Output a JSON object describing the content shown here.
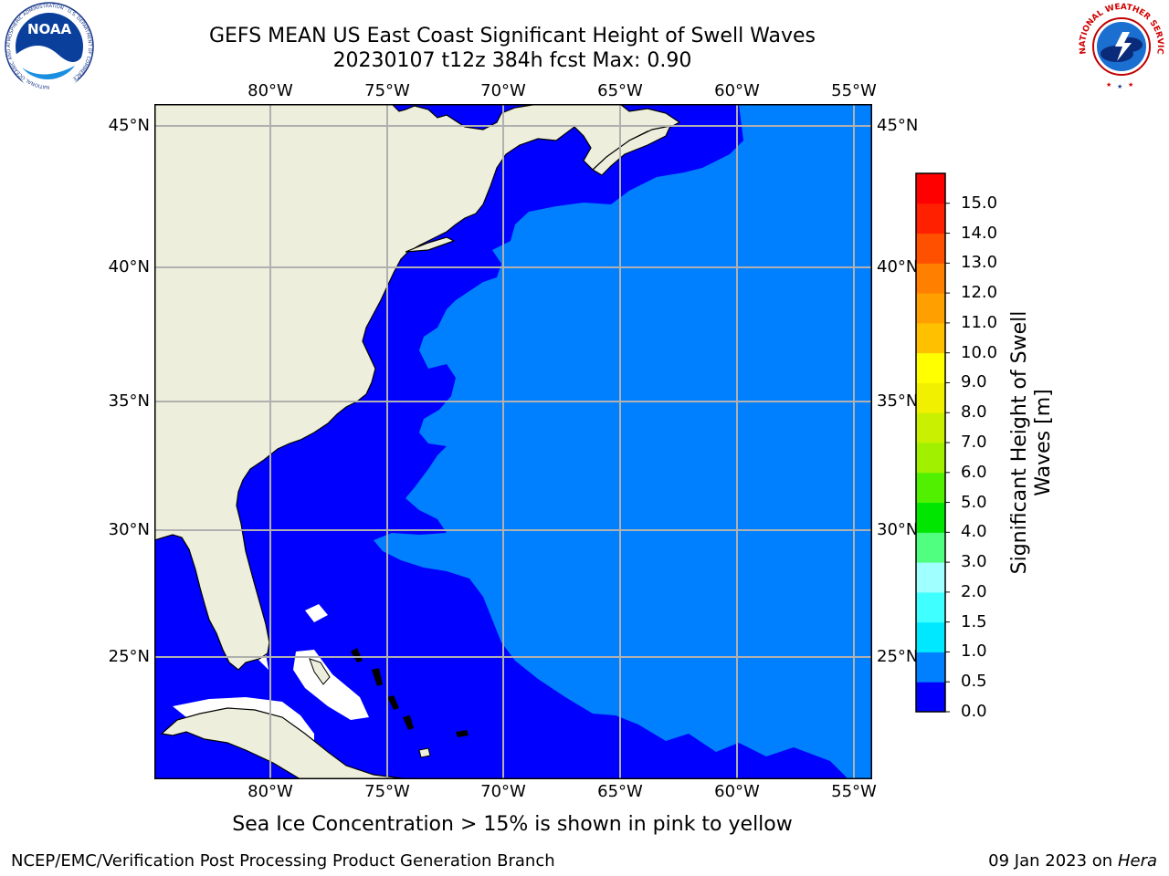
{
  "title": {
    "line1": "GEFS MEAN US East Coast Significant Height of Swell Waves",
    "line2": "20230107 t12z 384h fcst   Max: 0.90"
  },
  "map": {
    "lon_ticks": [
      "80°W",
      "75°W",
      "70°W",
      "65°W",
      "60°W",
      "55°W"
    ],
    "lat_ticks": [
      "45°N",
      "40°N",
      "35°N",
      "30°N",
      "25°N"
    ],
    "colors": {
      "land": "#eeeedc",
      "ocean_low": "#0000ff",
      "ocean_mid": "#0080ff",
      "no_data": "#ffffff",
      "gridline": "#b0b0b0",
      "coastline": "#000000"
    }
  },
  "colorbar": {
    "label_line1": "Significant Height of Swell",
    "label_line2": "Waves [m]",
    "tick_labels": [
      "0.0",
      "0.5",
      "1.0",
      "1.5",
      "2.0",
      "3.0",
      "4.0",
      "5.0",
      "6.0",
      "7.0",
      "8.0",
      "9.0",
      "10.0",
      "11.0",
      "12.0",
      "13.0",
      "14.0",
      "15.0"
    ],
    "colors": [
      "#0000ff",
      "#0080ff",
      "#00e8ff",
      "#40ffff",
      "#a0ffff",
      "#50ff80",
      "#00e600",
      "#50f000",
      "#a0f000",
      "#c8f000",
      "#f0f000",
      "#ffff00",
      "#ffc000",
      "#ffa000",
      "#ff8000",
      "#ff5000",
      "#ff2000",
      "#ff0000"
    ]
  },
  "note": "Sea Ice Concentration > 15% is shown in pink to yellow",
  "footer": {
    "left": "NCEP/EMC/Verification Post Processing Product Generation Branch",
    "right_date": "09 Jan 2023 on",
    "right_machine": "Hera"
  },
  "logos": {
    "noaa_text": "NOAA",
    "noaa_ring_text": "NATIONAL OCEANIC AND ATMOSPHERIC ADMINISTRATION · U.S. DEPARTMENT OF COMMERCE",
    "nws_ring_text": "NATIONAL WEATHER SERVICE"
  }
}
